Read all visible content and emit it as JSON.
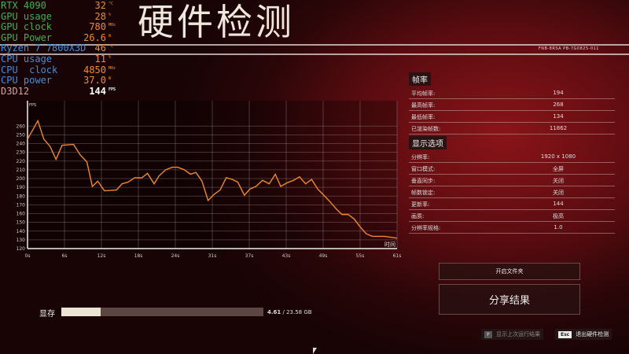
{
  "header": {
    "title": "硬件检测",
    "serial": "FNB-8RSA PB-7G0825-011"
  },
  "osd": {
    "rows": [
      {
        "label": "RTX 4090",
        "value": "32",
        "unit": "°C",
        "color": "g"
      },
      {
        "label": "GPU usage",
        "value": "28",
        "unit": "%",
        "color": "g"
      },
      {
        "label": "GPU clock",
        "value": "780",
        "unit": "MHz",
        "color": "g"
      },
      {
        "label": "GPU Power",
        "value": "26.6",
        "unit": "W",
        "color": "g"
      },
      {
        "label": "Ryzen 7 7800X3D",
        "value": "46",
        "unit": "°C",
        "color": "b"
      },
      {
        "label": "CPU usage",
        "value": "11",
        "unit": "%",
        "color": "b"
      },
      {
        "label": "CPU  clock",
        "value": "4850",
        "unit": "MHz",
        "color": "b"
      },
      {
        "label": "CPU power",
        "value": "37.0",
        "unit": "W",
        "color": "b"
      },
      {
        "label": "D3D12",
        "value": "144",
        "unit": "FPS",
        "color": "p"
      }
    ]
  },
  "chart_data": {
    "type": "line",
    "ylabel": "FPS",
    "xlabel": "时间",
    "ylim": [
      120,
      280
    ],
    "yticks": [
      120,
      130,
      140,
      150,
      160,
      170,
      180,
      190,
      200,
      210,
      220,
      230,
      240,
      250,
      260
    ],
    "xtick_labels": [
      "0s",
      "6s",
      "12s",
      "18s",
      "24s",
      "31s",
      "37s",
      "43s",
      "49s",
      "55s",
      "61s"
    ],
    "xlim": [
      0,
      61
    ],
    "grid": true,
    "color": "#f0882e",
    "points": [
      [
        0,
        245
      ],
      [
        1.7,
        266
      ],
      [
        2.7,
        245
      ],
      [
        3.7,
        237
      ],
      [
        4.7,
        222
      ],
      [
        5.7,
        238
      ],
      [
        7.6,
        239
      ],
      [
        8.7,
        227
      ],
      [
        9.8,
        219
      ],
      [
        10.7,
        191
      ],
      [
        11.6,
        197
      ],
      [
        12.7,
        186
      ],
      [
        14.7,
        187
      ],
      [
        15.6,
        194
      ],
      [
        16.6,
        196
      ],
      [
        17.7,
        201
      ],
      [
        18.9,
        201
      ],
      [
        19.8,
        206
      ],
      [
        20.9,
        194
      ],
      [
        21.7,
        203
      ],
      [
        22.8,
        210
      ],
      [
        23.9,
        213
      ],
      [
        24.8,
        213
      ],
      [
        25.9,
        210
      ],
      [
        26.9,
        205
      ],
      [
        27.8,
        207
      ],
      [
        28.8,
        197
      ],
      [
        29.8,
        175
      ],
      [
        30.8,
        182
      ],
      [
        31.8,
        187
      ],
      [
        32.8,
        201
      ],
      [
        33.8,
        199
      ],
      [
        34.7,
        196
      ],
      [
        35.8,
        181
      ],
      [
        36.7,
        188
      ],
      [
        37.7,
        191
      ],
      [
        38.8,
        198
      ],
      [
        39.9,
        194
      ],
      [
        40.9,
        205
      ],
      [
        41.8,
        191
      ],
      [
        42.8,
        195
      ],
      [
        43.9,
        198
      ],
      [
        44.9,
        202
      ],
      [
        45.9,
        194
      ],
      [
        46.9,
        199
      ],
      [
        47.9,
        188
      ],
      [
        48.9,
        181
      ],
      [
        50.0,
        173
      ],
      [
        51.0,
        165
      ],
      [
        51.9,
        159
      ],
      [
        52.9,
        159
      ],
      [
        53.9,
        154
      ],
      [
        55.0,
        144
      ],
      [
        55.9,
        137
      ],
      [
        56.9,
        134
      ],
      [
        58.9,
        134
      ],
      [
        61,
        132
      ]
    ]
  },
  "framerate": {
    "title": "帧率",
    "rows": [
      {
        "label": "平均帧率:",
        "value": "194"
      },
      {
        "label": "最高帧率:",
        "value": "268"
      },
      {
        "label": "最低帧率:",
        "value": "134"
      },
      {
        "label": "已渲染帧数:",
        "value": "11862"
      }
    ]
  },
  "display": {
    "title": "显示选项",
    "rows": [
      {
        "label": "分辨率:",
        "value": "1920 x 1080"
      },
      {
        "label": "窗口模式:",
        "value": "全屏"
      },
      {
        "label": "垂直同步:",
        "value": "关闭"
      },
      {
        "label": "帧数锁定:",
        "value": "关闭"
      },
      {
        "label": "更新率:",
        "value": "144"
      },
      {
        "label": "画质:",
        "value": "极高"
      },
      {
        "label": "分辨率规格:",
        "value": "1.0"
      }
    ]
  },
  "buttons": {
    "open_folder": "开启文件夹",
    "share": "分享结果"
  },
  "vram": {
    "label": "显存",
    "used": "4.61",
    "total": "/ 23.58 GB",
    "fraction": 0.1955
  },
  "footer": {
    "last_key": "F",
    "last_label": "显示上次运行结果",
    "exit_key": "Esc",
    "exit_label": "退出硬件检测"
  }
}
